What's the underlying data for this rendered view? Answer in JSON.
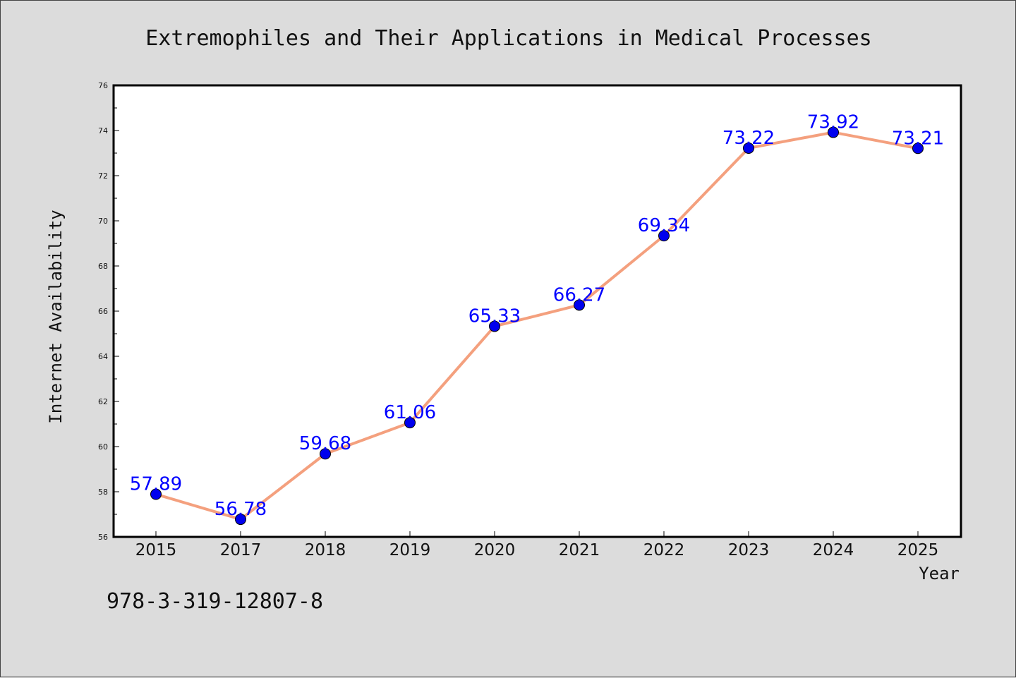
{
  "chart_data": {
    "type": "line",
    "title": "Extremophiles and Their Applications in Medical Processes",
    "xlabel": "Year",
    "ylabel": "Internet Availability",
    "categories": [
      "2015",
      "2017",
      "2018",
      "2019",
      "2020",
      "2021",
      "2022",
      "2023",
      "2024",
      "2025"
    ],
    "series": [
      {
        "values": [
          57.89,
          56.78,
          59.68,
          61.06,
          65.33,
          66.27,
          69.34,
          73.22,
          73.92,
          73.21
        ],
        "data_labels": [
          "57.89",
          "56.78",
          "59.68",
          "61.06",
          "65.33",
          "66.27",
          "69.34",
          "73.22",
          "73.92",
          "73.21"
        ]
      }
    ],
    "ylim": [
      56,
      76
    ],
    "yticks": [
      "56",
      "58",
      "60",
      "62",
      "64",
      "66",
      "68",
      "70",
      "72",
      "74",
      "76"
    ],
    "grid": false,
    "colors": {
      "line": "#f4a07e",
      "marker": "#0000ee",
      "label": "#0000ff",
      "background": "#dcdcdc",
      "plot_area": "#ffffff"
    }
  },
  "footnote": "978-3-319-12807-8"
}
